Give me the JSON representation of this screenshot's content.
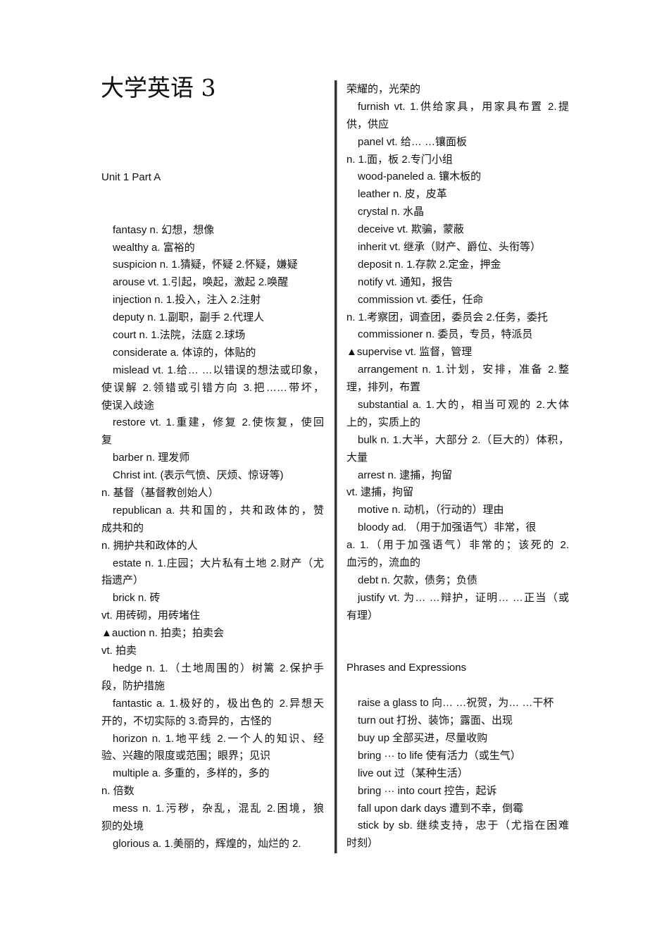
{
  "title": "大学英语 3",
  "left": {
    "lines": [
      {
        "text": "Unit 1 Part A",
        "indent": false
      },
      {
        "text": "",
        "indent": false
      },
      {
        "text": "",
        "indent": false
      },
      {
        "text": "fantasy n.  幻想，想像",
        "indent": true
      },
      {
        "text": "wealthy a.  富裕的",
        "indent": true
      },
      {
        "text": "suspicion n. 1.猜疑，怀疑  2.怀疑，嫌疑",
        "indent": true
      },
      {
        "text": "arouse vt. 1.引起，唤起，激起  2.唤醒",
        "indent": true
      },
      {
        "text": "injection n. 1.投入，注入  2.注射",
        "indent": true
      },
      {
        "text": "deputy n. 1.副职，副手  2.代理人",
        "indent": true
      },
      {
        "text": "court n. 1.法院，法庭  2.球场",
        "indent": true
      },
      {
        "text": "considerate a.  体谅的，体贴的",
        "indent": true
      },
      {
        "text": "mislead vt. 1.给… …以错误的想法或印象，",
        "indent": true
      },
      {
        "text": "使误解  2.领错或引错方向  3.把……带坏，",
        "indent": false
      },
      {
        "text": "使误入歧途",
        "indent": false
      },
      {
        "text": "restore vt. 1.重建，修复 2.使恢复，使回",
        "indent": true
      },
      {
        "text": "复",
        "indent": false
      },
      {
        "text": "barber n.  理发师",
        "indent": true
      },
      {
        "text": "Christ int. (表示气愤、厌烦、惊讶等)",
        "indent": true
      },
      {
        "text": "n.  基督（基督教创始人）",
        "indent": false
      },
      {
        "text": "republican a.  共和国的，共和政体的，赞",
        "indent": true
      },
      {
        "text": "成共和的",
        "indent": false
      },
      {
        "text": "n.  拥护共和政体的人",
        "indent": false
      },
      {
        "text": "estate n. 1.庄园；大片私有土地  2.财产（尤",
        "indent": true
      },
      {
        "text": "指遗产）",
        "indent": false
      },
      {
        "text": "brick n.  砖",
        "indent": true
      },
      {
        "text": "vt.  用砖砌，用砖堵住",
        "indent": false
      },
      {
        "text": "▲auction n.  拍卖；拍卖会",
        "indent": false
      },
      {
        "text": "vt.  拍卖",
        "indent": false
      },
      {
        "text": "hedge n. 1.（土地周围的）树篱  2.保护手",
        "indent": true
      },
      {
        "text": "段，防护措施",
        "indent": false
      },
      {
        "text": "fantastic a. 1.极好的，极出色的  2.异想天",
        "indent": true
      },
      {
        "text": "开的，不切实际的  3.奇异的，古怪的",
        "indent": false
      },
      {
        "text": "horizon  n.  1.地平线  2.一个人的知识、经",
        "indent": true
      },
      {
        "text": "验、兴趣的限度或范围；眼界；见识",
        "indent": false
      },
      {
        "text": "multiple a.  多重的，多样的，多的",
        "indent": true
      },
      {
        "text": "n.  倍数",
        "indent": false
      },
      {
        "text": "mess  n.  1.污秽，杂乱，混乱  2.困境，狼",
        "indent": true
      },
      {
        "text": "狈的处境",
        "indent": false
      },
      {
        "text": "glorious  a.  1.美丽的，辉煌的，灿烂的  2.",
        "indent": true
      }
    ]
  },
  "right": {
    "lines": [
      {
        "text": "荣耀的，光荣的",
        "indent": false
      },
      {
        "text": "furnish  vt.  1.供给家具，用家具布置  2.提",
        "indent": true
      },
      {
        "text": "供，供应",
        "indent": false
      },
      {
        "text": "panel vt.  给… …镶面板",
        "indent": true
      },
      {
        "text": "n. 1.面，板  2.专门小组",
        "indent": false
      },
      {
        "text": "wood-paneled a.  镶木板的",
        "indent": true
      },
      {
        "text": "leather n.  皮，皮革",
        "indent": true
      },
      {
        "text": "crystal n.  水晶",
        "indent": true
      },
      {
        "text": "deceive vt.  欺骗，蒙蔽",
        "indent": true
      },
      {
        "text": "inherit vt.  继承（财产、爵位、头衔等）",
        "indent": true
      },
      {
        "text": "deposit n. 1.存款  2.定金，押金",
        "indent": true
      },
      {
        "text": "notify vt.  通知，报告",
        "indent": true
      },
      {
        "text": "commission vt.  委任，任命",
        "indent": true
      },
      {
        "text": "n. 1.考察团，调查团，委员会  2.任务，委托",
        "indent": false
      },
      {
        "text": "commissioner n.  委员，专员，特派员",
        "indent": true
      },
      {
        "text": "▲supervise vt.  监督，管理",
        "indent": false
      },
      {
        "text": "arrangement  n.  1.计划，安排，准备  2.整",
        "indent": true
      },
      {
        "text": "理，排列，布置",
        "indent": false
      },
      {
        "text": "substantial a. 1.大的，相当可观的  2.大体",
        "indent": true
      },
      {
        "text": "上的，实质上的",
        "indent": false
      },
      {
        "text": "bulk n. 1.大半，大部分  2.（巨大的）体积，",
        "indent": true
      },
      {
        "text": "大量",
        "indent": false
      },
      {
        "text": "arrest n.  逮捕，拘留",
        "indent": true
      },
      {
        "text": "vt.  逮捕，拘留",
        "indent": false
      },
      {
        "text": "motive n.  动机，（行动的）理由",
        "indent": true
      },
      {
        "text": "bloody ad.  （用于加强语气）非常，很",
        "indent": true
      },
      {
        "text": "a.  1.（用于加强语气）非常的；该死的  2.",
        "indent": false
      },
      {
        "text": "血污的，流血的",
        "indent": false
      },
      {
        "text": "debt n.  欠款，债务；负债",
        "indent": true
      },
      {
        "text": "justify vt.  为… …辩护，证明… …正当（或",
        "indent": true
      },
      {
        "text": "有理）",
        "indent": false
      },
      {
        "text": "",
        "indent": false
      },
      {
        "text": "",
        "indent": false
      },
      {
        "text": "Phrases and Expressions",
        "indent": false
      },
      {
        "text": "",
        "indent": false
      },
      {
        "text": "raise a glass to  向… …祝贺，为… …干杯",
        "indent": true
      },
      {
        "text": "turn out  打扮、装饰；露面、出现",
        "indent": true
      },
      {
        "text": "buy up  全部买进，尽量收购",
        "indent": true
      },
      {
        "text": "bring  ···  to life  使有活力（或生气）",
        "indent": true
      },
      {
        "text": "live out  过（某种生活）",
        "indent": true
      },
      {
        "text": "bring  ···  into court  控告，起诉",
        "indent": true
      },
      {
        "text": "fall upon dark days  遭到不幸，倒霉",
        "indent": true
      },
      {
        "text": "stick by sb.  继续支持，忠于（尤指在困难",
        "indent": true
      },
      {
        "text": "时刻）",
        "indent": false
      }
    ]
  }
}
